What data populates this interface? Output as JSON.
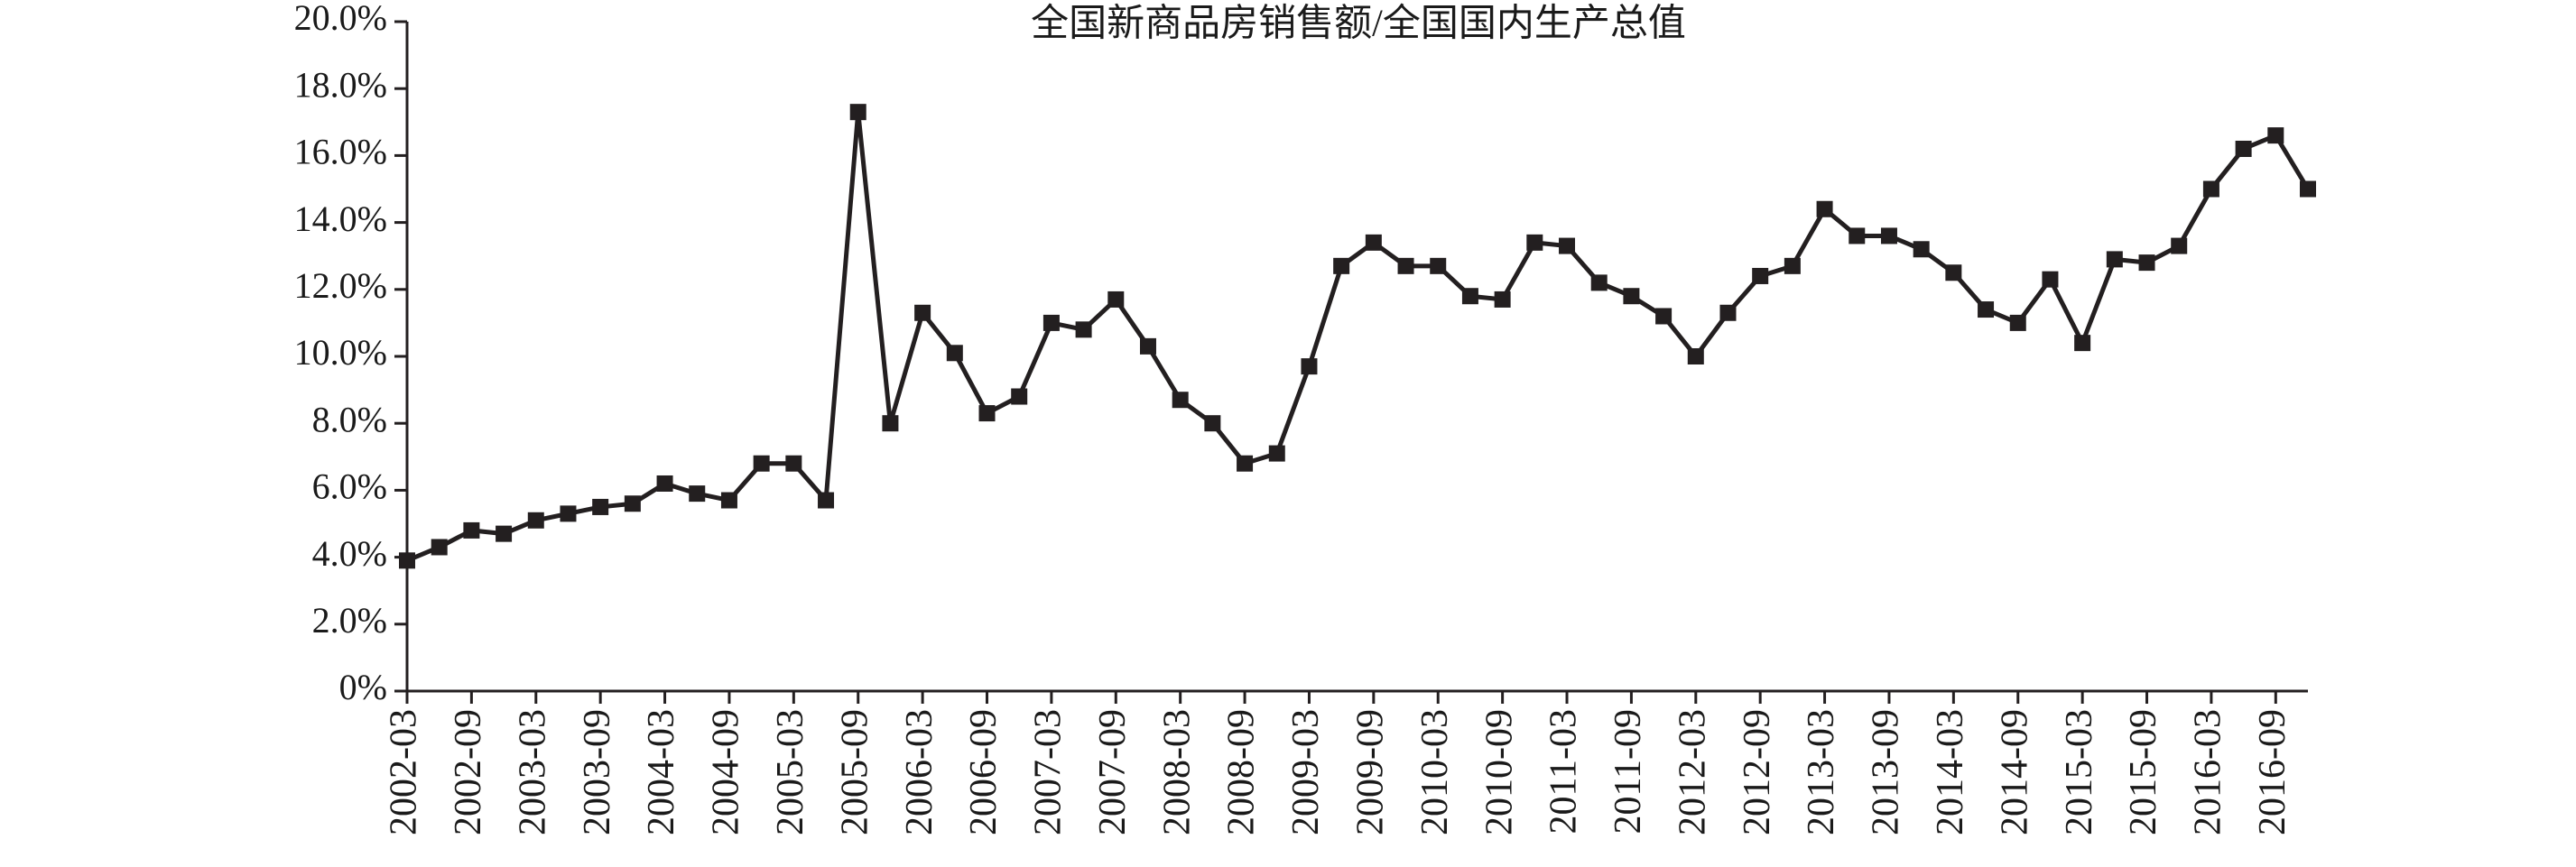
{
  "chart_data": {
    "type": "line",
    "title": "全国新商品房销售额/全国国内生产总值",
    "categories": [
      "2002-03",
      null,
      "2002-09",
      null,
      "2003-03",
      null,
      "2003-09",
      null,
      "2004-03",
      null,
      "2004-09",
      null,
      "2005-03",
      null,
      "2005-09",
      null,
      "2006-03",
      null,
      "2006-09",
      null,
      "2007-03",
      null,
      "2007-09",
      null,
      "2008-03",
      null,
      "2008-09",
      null,
      "2009-03",
      null,
      "2009-09",
      null,
      "2010-03",
      null,
      "2010-09",
      null,
      "2011-03",
      null,
      "2011-09",
      null,
      "2012-03",
      null,
      "2012-09",
      null,
      "2013-03",
      null,
      "2013-09",
      null,
      "2014-03",
      null,
      "2014-09",
      null,
      "2015-03",
      null,
      "2015-09",
      null,
      "2016-03",
      null,
      "2016-09",
      null
    ],
    "values": [
      3.9,
      4.3,
      4.8,
      4.7,
      5.1,
      5.3,
      5.5,
      5.6,
      6.2,
      5.9,
      5.7,
      6.8,
      6.8,
      5.7,
      17.3,
      8.0,
      11.3,
      10.1,
      8.3,
      8.8,
      11.0,
      10.8,
      11.7,
      10.3,
      8.7,
      8.0,
      6.8,
      7.1,
      9.7,
      12.7,
      13.4,
      12.7,
      12.7,
      11.8,
      11.7,
      13.4,
      13.3,
      12.2,
      11.8,
      11.2,
      10.0,
      11.3,
      12.4,
      12.7,
      14.4,
      13.6,
      13.6,
      13.2,
      12.5,
      11.4,
      11.0,
      12.3,
      10.4,
      12.9,
      12.8,
      13.3,
      15.0,
      16.2,
      16.6,
      15.0
    ],
    "color": "#231f20",
    "ylim": [
      0,
      20
    ],
    "yticks": [
      {
        "value": 0,
        "label": "0%"
      },
      {
        "value": 2,
        "label": "2.0%"
      },
      {
        "value": 4,
        "label": "4.0%"
      },
      {
        "value": 6,
        "label": "6.0%"
      },
      {
        "value": 8,
        "label": "8.0%"
      },
      {
        "value": 10,
        "label": "10.0%"
      },
      {
        "value": 12,
        "label": "12.0%"
      },
      {
        "value": 14,
        "label": "14.0%"
      },
      {
        "value": 16,
        "label": "16.0%"
      },
      {
        "value": 18,
        "label": "18.0%"
      },
      {
        "value": 20,
        "label": "20.0%"
      }
    ]
  }
}
